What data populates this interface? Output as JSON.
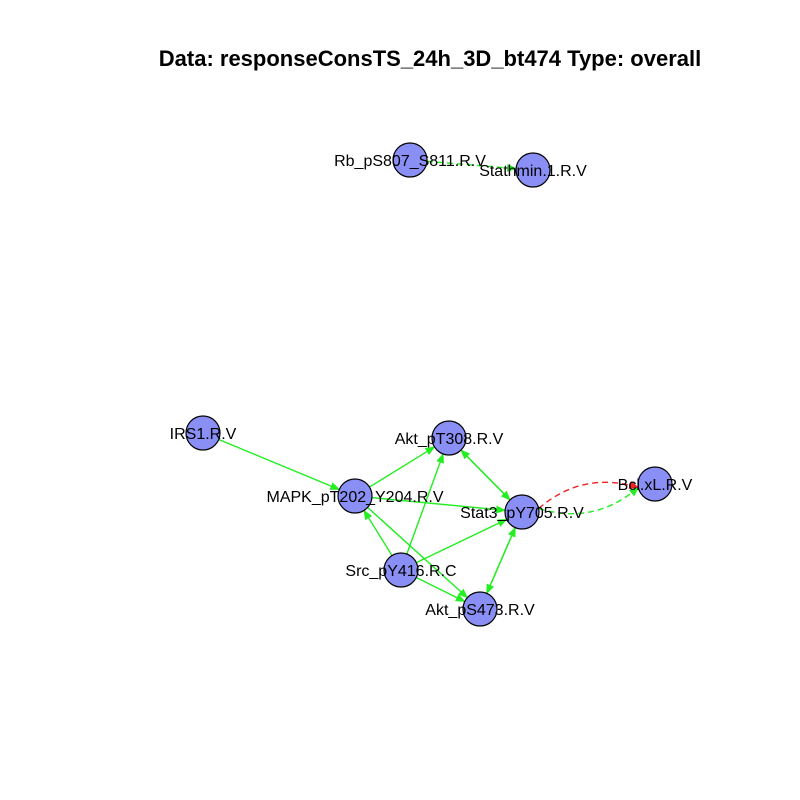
{
  "title": "Data: responseConsTS_24h_3D_bt474 Type: overall",
  "colors": {
    "node_fill": "#8A8FF5",
    "node_stroke": "#000000",
    "edge_positive": "#22EE22",
    "edge_negative": "#EE2222"
  },
  "nodes": [
    {
      "id": "rb",
      "label": "Rb_pS807_S811.R.V"
    },
    {
      "id": "stath",
      "label": "Stathmin.1.R.V"
    },
    {
      "id": "irs1",
      "label": "IRS1.R.V"
    },
    {
      "id": "akt308",
      "label": "Akt_pT308.R.V"
    },
    {
      "id": "mapk",
      "label": "MAPK_pT202_Y204.R.V"
    },
    {
      "id": "stat3",
      "label": "Stat3_pY705.R.V"
    },
    {
      "id": "bclxl",
      "label": "Bcl.xL.R.V"
    },
    {
      "id": "src",
      "label": "Src_pY416.R.C"
    },
    {
      "id": "akt473",
      "label": "Akt_pS473.R.V"
    }
  ],
  "edges": [
    {
      "from": "rb",
      "to": "stath",
      "sign": "positive",
      "style": "dashed"
    },
    {
      "from": "irs1",
      "to": "mapk",
      "sign": "positive",
      "style": "solid"
    },
    {
      "from": "mapk",
      "to": "akt308",
      "sign": "positive",
      "style": "solid"
    },
    {
      "from": "mapk",
      "to": "stat3",
      "sign": "positive",
      "style": "solid"
    },
    {
      "from": "mapk",
      "to": "akt473",
      "sign": "positive",
      "style": "solid"
    },
    {
      "from": "src",
      "to": "akt308",
      "sign": "positive",
      "style": "solid"
    },
    {
      "from": "src",
      "to": "stat3",
      "sign": "positive",
      "style": "solid"
    },
    {
      "from": "src",
      "to": "akt473",
      "sign": "positive",
      "style": "solid"
    },
    {
      "from": "src",
      "to": "mapk",
      "sign": "positive",
      "style": "solid"
    },
    {
      "from": "akt308",
      "to": "stat3",
      "sign": "positive",
      "style": "solid"
    },
    {
      "from": "stat3",
      "to": "akt308",
      "sign": "positive",
      "style": "solid"
    },
    {
      "from": "stat3",
      "to": "akt473",
      "sign": "positive",
      "style": "solid"
    },
    {
      "from": "akt473",
      "to": "stat3",
      "sign": "positive",
      "style": "solid"
    },
    {
      "from": "stat3",
      "to": "bclxl",
      "sign": "positive",
      "style": "dashed"
    },
    {
      "from": "stat3",
      "to": "bclxl",
      "sign": "negative",
      "style": "dashed"
    }
  ]
}
